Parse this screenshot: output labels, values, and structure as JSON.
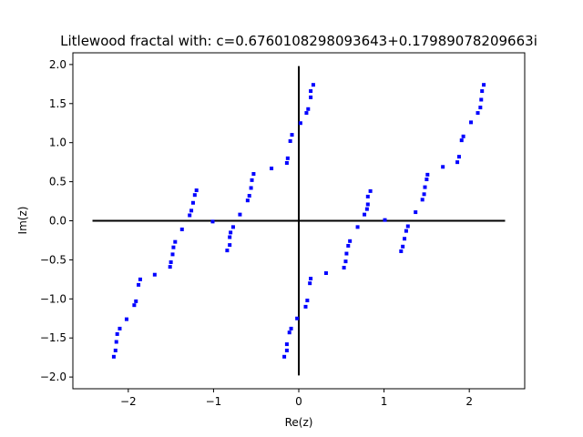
{
  "chart_data": {
    "type": "scatter",
    "title": "Litlewood fractal with: c=0.6760108298093643+0.17989078209663i",
    "xlabel": "Re(z)",
    "ylabel": "Im(z)",
    "xlim": [
      -2.65,
      2.65
    ],
    "ylim": [
      -2.15,
      2.15
    ],
    "xticks": [
      -2,
      -1,
      0,
      1,
      2
    ],
    "xtick_labels": [
      "−2",
      "−1",
      "0",
      "1",
      "2"
    ],
    "yticks": [
      -2.0,
      -1.5,
      -1.0,
      -0.5,
      0.0,
      0.5,
      1.0,
      1.5,
      2.0
    ],
    "ytick_labels": [
      "−2.0",
      "−1.5",
      "−1.0",
      "−0.5",
      "0.0",
      "0.5",
      "1.0",
      "1.5",
      "2.0"
    ],
    "grid": false,
    "point_color": "#0000ff",
    "axis_line_color": "#000000",
    "reference_lines": {
      "horizontal": {
        "y": 0,
        "x_range": [
          -2.42,
          2.42
        ]
      },
      "vertical": {
        "x": 0,
        "y_range": [
          -1.98,
          1.98
        ]
      }
    },
    "series": [
      {
        "values": [
          {
            "x": 0.17,
            "y": 1.74
          },
          {
            "x": 0.14,
            "y": 1.66
          },
          {
            "x": 0.14,
            "y": 1.58
          },
          {
            "x": 0.11,
            "y": 1.43
          },
          {
            "x": 0.09,
            "y": 1.38
          },
          {
            "x": 0.02,
            "y": 1.25
          },
          {
            "x": -0.08,
            "y": 1.1
          },
          {
            "x": -0.1,
            "y": 1.02
          },
          {
            "x": -0.13,
            "y": 0.8
          },
          {
            "x": -0.14,
            "y": 0.74
          },
          {
            "x": -0.32,
            "y": 0.67
          },
          {
            "x": -0.53,
            "y": 0.6
          },
          {
            "x": -0.55,
            "y": 0.52
          },
          {
            "x": -0.56,
            "y": 0.42
          },
          {
            "x": -0.58,
            "y": 0.32
          },
          {
            "x": -0.6,
            "y": 0.26
          },
          {
            "x": -0.69,
            "y": 0.08
          },
          {
            "x": -0.77,
            "y": -0.08
          },
          {
            "x": -0.8,
            "y": -0.15
          },
          {
            "x": -0.81,
            "y": -0.21
          },
          {
            "x": -0.81,
            "y": -0.31
          },
          {
            "x": -0.84,
            "y": -0.38
          },
          {
            "x": -1.2,
            "y": 0.39
          },
          {
            "x": -1.22,
            "y": 0.33
          },
          {
            "x": -1.24,
            "y": 0.23
          },
          {
            "x": -1.26,
            "y": 0.13
          },
          {
            "x": -1.28,
            "y": 0.07
          },
          {
            "x": -1.37,
            "y": -0.11
          },
          {
            "x": -1.45,
            "y": -0.27
          },
          {
            "x": -1.47,
            "y": -0.34
          },
          {
            "x": -1.48,
            "y": -0.43
          },
          {
            "x": -1.5,
            "y": -0.53
          },
          {
            "x": -1.51,
            "y": -0.59
          },
          {
            "x": -1.69,
            "y": -0.69
          },
          {
            "x": -1.86,
            "y": -0.75
          },
          {
            "x": -1.88,
            "y": -0.82
          },
          {
            "x": -1.91,
            "y": -1.03
          },
          {
            "x": -1.93,
            "y": -1.08
          },
          {
            "x": -2.02,
            "y": -1.26
          },
          {
            "x": -2.1,
            "y": -1.38
          },
          {
            "x": -2.13,
            "y": -1.45
          },
          {
            "x": -2.14,
            "y": -1.55
          },
          {
            "x": -2.15,
            "y": -1.66
          },
          {
            "x": -2.17,
            "y": -1.74
          },
          {
            "x": -0.17,
            "y": -1.74
          },
          {
            "x": -0.14,
            "y": -1.66
          },
          {
            "x": -0.14,
            "y": -1.58
          },
          {
            "x": -0.11,
            "y": -1.43
          },
          {
            "x": -0.09,
            "y": -1.38
          },
          {
            "x": -0.02,
            "y": -1.25
          },
          {
            "x": 0.08,
            "y": -1.1
          },
          {
            "x": 0.1,
            "y": -1.02
          },
          {
            "x": 0.13,
            "y": -0.8
          },
          {
            "x": 0.14,
            "y": -0.74
          },
          {
            "x": 0.32,
            "y": -0.67
          },
          {
            "x": 0.53,
            "y": -0.6
          },
          {
            "x": 0.55,
            "y": -0.52
          },
          {
            "x": 0.56,
            "y": -0.42
          },
          {
            "x": 0.58,
            "y": -0.32
          },
          {
            "x": 0.6,
            "y": -0.26
          },
          {
            "x": 0.69,
            "y": -0.08
          },
          {
            "x": 0.77,
            "y": 0.08
          },
          {
            "x": 0.8,
            "y": 0.15
          },
          {
            "x": 0.81,
            "y": 0.21
          },
          {
            "x": 0.81,
            "y": 0.31
          },
          {
            "x": 0.84,
            "y": 0.38
          },
          {
            "x": 1.2,
            "y": -0.39
          },
          {
            "x": 1.22,
            "y": -0.33
          },
          {
            "x": 1.24,
            "y": -0.23
          },
          {
            "x": 1.26,
            "y": -0.13
          },
          {
            "x": 1.28,
            "y": -0.07
          },
          {
            "x": 1.37,
            "y": 0.11
          },
          {
            "x": 1.45,
            "y": 0.27
          },
          {
            "x": 1.47,
            "y": 0.34
          },
          {
            "x": 1.48,
            "y": 0.43
          },
          {
            "x": 1.5,
            "y": 0.53
          },
          {
            "x": 1.51,
            "y": 0.59
          },
          {
            "x": 1.69,
            "y": 0.69
          },
          {
            "x": 1.86,
            "y": 0.75
          },
          {
            "x": 1.88,
            "y": 0.82
          },
          {
            "x": 1.91,
            "y": 1.03
          },
          {
            "x": 1.93,
            "y": 1.08
          },
          {
            "x": 2.02,
            "y": 1.26
          },
          {
            "x": 2.1,
            "y": 1.38
          },
          {
            "x": 2.13,
            "y": 1.45
          },
          {
            "x": 2.14,
            "y": 1.55
          },
          {
            "x": 2.15,
            "y": 1.66
          },
          {
            "x": 2.17,
            "y": 1.74
          },
          {
            "x": -1.01,
            "y": -0.01
          },
          {
            "x": 1.01,
            "y": 0.01
          }
        ]
      }
    ]
  }
}
